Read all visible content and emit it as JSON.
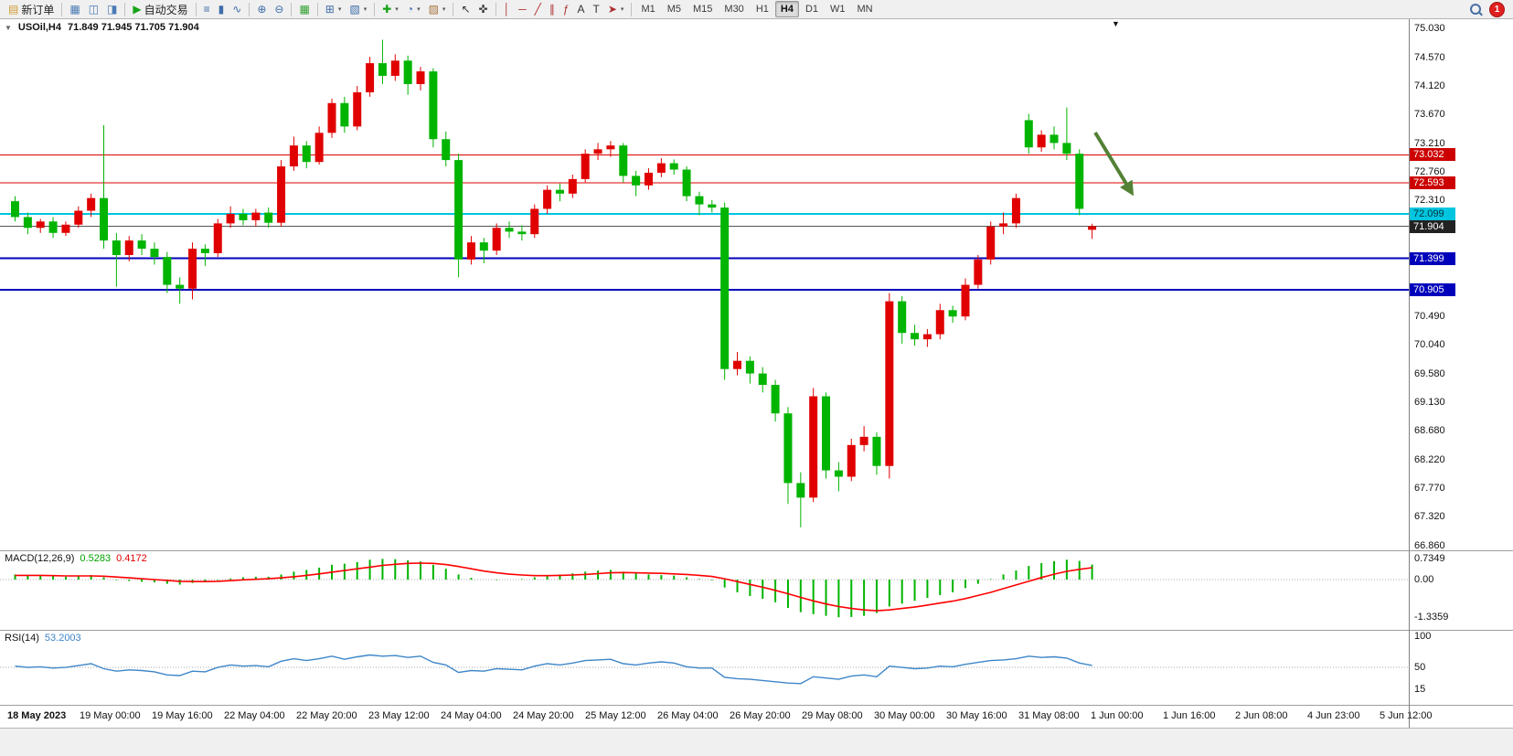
{
  "toolbar": {
    "items": [
      {
        "type": "labelbtn",
        "name": "new-order-button",
        "icon": "new-order-icon",
        "glyph": "▤",
        "color": "#cf9b2f",
        "label": "新订单"
      },
      {
        "type": "sep"
      },
      {
        "type": "icon",
        "name": "charts-window-icon",
        "glyph": "▦",
        "color": "#4a7ab5"
      },
      {
        "type": "icon",
        "name": "data-window-icon",
        "glyph": "◫",
        "color": "#4a7ab5"
      },
      {
        "type": "icon",
        "name": "navigator-icon",
        "glyph": "◨",
        "color": "#4a7ab5"
      },
      {
        "type": "sep"
      },
      {
        "type": "labelbtn",
        "name": "auto-trading-button",
        "icon": "autotrade-play-icon",
        "glyph": "▶",
        "color": "#17a317",
        "label": "自动交易"
      },
      {
        "type": "sep"
      },
      {
        "type": "icon",
        "name": "bar-chart-icon",
        "glyph": "≡",
        "color": "#3d6da8"
      },
      {
        "type": "icon",
        "name": "candlestick-chart-icon",
        "glyph": "▮",
        "color": "#3d6da8"
      },
      {
        "type": "icon",
        "name": "line-chart-icon",
        "glyph": "∿",
        "color": "#3d6da8"
      },
      {
        "type": "sep"
      },
      {
        "type": "icon",
        "name": "zoom-in-icon",
        "glyph": "⊕",
        "color": "#3d6da8"
      },
      {
        "type": "icon",
        "name": "zoom-out-icon",
        "glyph": "⊖",
        "color": "#3d6da8"
      },
      {
        "type": "sep"
      },
      {
        "type": "icon",
        "name": "tile-windows-icon",
        "glyph": "▦",
        "color": "#2f9e2f"
      },
      {
        "type": "sep"
      },
      {
        "type": "icon",
        "name": "new-chart-icon",
        "glyph": "⊞",
        "color": "#3d6da8",
        "dd": true
      },
      {
        "type": "icon",
        "name": "profiles-icon",
        "glyph": "▧",
        "color": "#3d6da8",
        "dd": true
      },
      {
        "type": "sep"
      },
      {
        "type": "icon",
        "name": "indicators-icon",
        "glyph": "✚",
        "color": "#17a317",
        "dd": true
      },
      {
        "type": "icon",
        "name": "periods-icon",
        "glyph": "◔",
        "color": "#3d6da8",
        "dd": true
      },
      {
        "type": "icon",
        "name": "templates-icon",
        "glyph": "▨",
        "color": "#a8743d",
        "dd": true
      },
      {
        "type": "sep"
      },
      {
        "type": "icon",
        "name": "cursor-icon",
        "glyph": "↖",
        "color": "#333333"
      },
      {
        "type": "icon",
        "name": "crosshair-icon",
        "glyph": "✜",
        "color": "#333333"
      },
      {
        "type": "sep"
      },
      {
        "type": "icon",
        "name": "vertical-line-icon",
        "glyph": "│",
        "color": "#b03030"
      },
      {
        "type": "ic",
        "name": ""
      },
      {
        "type": "icon",
        "name": "horizontal-line-icon",
        "glyph": "─",
        "color": "#b03030"
      },
      {
        "type": "icon",
        "name": "trendline-icon",
        "glyph": "╱",
        "color": "#b03030"
      },
      {
        "type": "icon",
        "name": "channel-icon",
        "glyph": "∥",
        "color": "#b03030"
      },
      {
        "type": "icon",
        "name": "fibonacci-icon",
        "glyph": "ƒ",
        "color": "#b03030"
      },
      {
        "type": "icon",
        "name": "text-icon",
        "glyph": "A",
        "color": "#333333"
      },
      {
        "type": "icon",
        "name": "label-icon",
        "glyph": "T",
        "color": "#333333"
      },
      {
        "type": "icon",
        "name": "arrows-icon",
        "glyph": "➤",
        "color": "#b03030",
        "dd": true
      },
      {
        "type": "sep"
      },
      {
        "type": "timeframes"
      },
      {
        "type": "spacer"
      },
      {
        "type": "search"
      },
      {
        "type": "badge"
      }
    ],
    "timeframes": [
      "M1",
      "M5",
      "M15",
      "M30",
      "H1",
      "H4",
      "D1",
      "W1",
      "MN"
    ],
    "active_timeframe": "H4",
    "notification_count": "1"
  },
  "chart": {
    "symbol_period": "USOil,H4",
    "ohlc_text": "71.849 71.945 71.705 71.904",
    "collapse_marker": "▼",
    "shift_marker": "▼",
    "price_axis": [
      "75.030",
      "74.570",
      "74.120",
      "73.670",
      "73.210",
      "72.760",
      "72.310",
      "70.490",
      "70.040",
      "69.580",
      "69.130",
      "68.680",
      "68.220",
      "67.770",
      "67.320",
      "66.860"
    ],
    "price_badges": [
      {
        "text": "73.032",
        "bg": "#cc0000",
        "fg": "#ffffff"
      },
      {
        "text": "72.593",
        "bg": "#cc0000",
        "fg": "#ffffff"
      },
      {
        "text": "72.099",
        "bg": "#00c5e0",
        "fg": "#00323a"
      },
      {
        "text": "71.904",
        "bg": "#222222",
        "fg": "#ffffff"
      },
      {
        "text": "71.399",
        "bg": "#0000bb",
        "fg": "#ffffff"
      },
      {
        "text": "70.905",
        "bg": "#0000bb",
        "fg": "#ffffff"
      }
    ],
    "hlines": [
      {
        "price": 73.032,
        "color": "#dd0000",
        "width": 1
      },
      {
        "price": 72.593,
        "color": "#dd0000",
        "width": 1
      },
      {
        "price": 72.099,
        "color": "#00c5e0",
        "width": 2
      },
      {
        "price": 71.904,
        "color": "#555555",
        "width": 1
      },
      {
        "price": 71.399,
        "color": "#0000bb",
        "width": 2
      },
      {
        "price": 70.905,
        "color": "#0000bb",
        "width": 2
      }
    ],
    "time_axis": [
      "18 May 2023",
      "19 May 00:00",
      "19 May 16:00",
      "22 May 04:00",
      "22 May 20:00",
      "23 May 12:00",
      "24 May 04:00",
      "24 May 20:00",
      "25 May 12:00",
      "26 May 04:00",
      "26 May 20:00",
      "29 May 08:00",
      "30 May 00:00",
      "30 May 16:00",
      "31 May 08:00",
      "1 Jun 00:00",
      "1 Jun 16:00",
      "2 Jun 08:00",
      "4 Jun 23:00",
      "5 Jun 12:00"
    ],
    "arrow_annotation": {
      "color": "#538135"
    }
  },
  "chart_data": {
    "type": "candlestick",
    "symbol": "USOil",
    "period": "H4",
    "ohlc_current": {
      "open": "71.849",
      "high": "71.945",
      "low": "71.705",
      "close": "71.904"
    },
    "colors": {
      "bull": "#e00000",
      "bear": "#00b400",
      "macd_hist": "#00b400",
      "macd_signal": "#ff0000",
      "rsi_line": "#3e86c8"
    },
    "candles": [
      [
        72.3,
        72.38,
        71.98,
        72.05
      ],
      [
        72.05,
        72.12,
        71.78,
        71.88
      ],
      [
        71.88,
        72.02,
        71.8,
        71.98
      ],
      [
        71.98,
        72.05,
        71.72,
        71.8
      ],
      [
        71.8,
        71.98,
        71.75,
        71.93
      ],
      [
        71.93,
        72.22,
        71.88,
        72.15
      ],
      [
        72.15,
        72.42,
        72.05,
        72.35
      ],
      [
        72.35,
        73.5,
        71.55,
        71.68
      ],
      [
        71.68,
        71.8,
        70.95,
        71.45
      ],
      [
        71.45,
        71.75,
        71.35,
        71.68
      ],
      [
        71.68,
        71.78,
        71.45,
        71.55
      ],
      [
        71.55,
        71.65,
        71.3,
        71.42
      ],
      [
        71.42,
        71.5,
        70.85,
        70.98
      ],
      [
        70.98,
        71.1,
        70.68,
        70.92
      ],
      [
        70.92,
        71.65,
        70.75,
        71.55
      ],
      [
        71.55,
        71.62,
        71.28,
        71.48
      ],
      [
        71.48,
        72.02,
        71.42,
        71.95
      ],
      [
        71.95,
        72.22,
        71.88,
        72.1
      ],
      [
        72.1,
        72.18,
        71.92,
        72.0
      ],
      [
        72.0,
        72.18,
        71.9,
        72.12
      ],
      [
        72.12,
        72.2,
        71.88,
        71.96
      ],
      [
        71.96,
        72.95,
        71.9,
        72.85
      ],
      [
        72.85,
        73.32,
        72.78,
        73.18
      ],
      [
        73.18,
        73.25,
        72.82,
        72.92
      ],
      [
        72.92,
        73.48,
        72.88,
        73.38
      ],
      [
        73.38,
        73.92,
        73.3,
        73.85
      ],
      [
        73.85,
        73.95,
        73.38,
        73.48
      ],
      [
        73.48,
        74.12,
        73.42,
        74.02
      ],
      [
        74.02,
        74.58,
        73.95,
        74.48
      ],
      [
        74.48,
        74.85,
        74.15,
        74.28
      ],
      [
        74.28,
        74.62,
        74.2,
        74.52
      ],
      [
        74.52,
        74.6,
        73.98,
        74.15
      ],
      [
        74.15,
        74.42,
        74.05,
        74.35
      ],
      [
        74.35,
        74.4,
        73.15,
        73.28
      ],
      [
        73.28,
        73.4,
        72.85,
        72.95
      ],
      [
        72.95,
        73.05,
        71.1,
        71.38
      ],
      [
        71.38,
        71.75,
        71.3,
        71.65
      ],
      [
        71.65,
        71.72,
        71.32,
        71.52
      ],
      [
        71.52,
        71.95,
        71.45,
        71.88
      ],
      [
        71.88,
        71.98,
        71.72,
        71.82
      ],
      [
        71.82,
        71.92,
        71.68,
        71.78
      ],
      [
        71.78,
        72.25,
        71.72,
        72.18
      ],
      [
        72.18,
        72.55,
        72.1,
        72.48
      ],
      [
        72.48,
        72.58,
        72.3,
        72.42
      ],
      [
        72.42,
        72.72,
        72.35,
        72.65
      ],
      [
        72.65,
        73.12,
        72.6,
        73.05
      ],
      [
        73.05,
        73.22,
        72.95,
        73.12
      ],
      [
        73.12,
        73.25,
        73.0,
        73.18
      ],
      [
        73.18,
        73.22,
        72.6,
        72.7
      ],
      [
        72.7,
        72.78,
        72.38,
        72.55
      ],
      [
        72.55,
        72.82,
        72.48,
        72.75
      ],
      [
        72.75,
        72.98,
        72.68,
        72.9
      ],
      [
        72.9,
        72.96,
        72.72,
        72.8
      ],
      [
        72.8,
        72.85,
        72.3,
        72.38
      ],
      [
        72.38,
        72.45,
        72.08,
        72.25
      ],
      [
        72.25,
        72.32,
        72.12,
        72.2
      ],
      [
        72.2,
        72.28,
        69.48,
        69.65
      ],
      [
        69.65,
        69.92,
        69.55,
        69.78
      ],
      [
        69.78,
        69.85,
        69.42,
        69.58
      ],
      [
        69.58,
        69.68,
        69.28,
        69.4
      ],
      [
        69.4,
        69.48,
        68.82,
        68.95
      ],
      [
        68.95,
        69.05,
        67.52,
        67.85
      ],
      [
        67.85,
        68.02,
        67.15,
        67.62
      ],
      [
        67.62,
        69.35,
        67.55,
        69.22
      ],
      [
        69.22,
        69.28,
        67.92,
        68.05
      ],
      [
        68.05,
        68.18,
        67.72,
        67.95
      ],
      [
        67.95,
        68.55,
        67.88,
        68.45
      ],
      [
        68.45,
        68.75,
        68.35,
        68.58
      ],
      [
        68.58,
        68.65,
        67.98,
        68.12
      ],
      [
        68.12,
        70.85,
        67.92,
        70.72
      ],
      [
        70.72,
        70.8,
        70.05,
        70.22
      ],
      [
        70.22,
        70.35,
        70.02,
        70.12
      ],
      [
        70.12,
        70.28,
        70.0,
        70.2
      ],
      [
        70.2,
        70.68,
        70.12,
        70.58
      ],
      [
        70.58,
        70.65,
        70.38,
        70.48
      ],
      [
        70.48,
        71.08,
        70.42,
        70.98
      ],
      [
        70.98,
        71.45,
        70.92,
        71.38
      ],
      [
        71.38,
        71.98,
        71.3,
        71.9
      ],
      [
        71.9,
        72.12,
        71.78,
        71.95
      ],
      [
        71.95,
        72.42,
        71.88,
        72.35
      ],
      [
        73.58,
        73.68,
        73.05,
        73.15
      ],
      [
        73.15,
        73.42,
        73.08,
        73.35
      ],
      [
        73.35,
        73.48,
        73.12,
        73.22
      ],
      [
        73.22,
        73.78,
        72.95,
        73.05
      ],
      [
        73.05,
        73.12,
        72.08,
        72.18
      ],
      [
        71.849,
        71.945,
        71.705,
        71.904
      ]
    ],
    "macd": {
      "label": "MACD(12,26,9)",
      "main_value": "0.5283",
      "signal_value": "0.4172",
      "axis": [
        "0.7349",
        "0.00",
        "-1.3359"
      ],
      "histogram": [
        0.18,
        0.16,
        0.14,
        0.12,
        0.1,
        0.12,
        0.16,
        0.08,
        -0.02,
        -0.05,
        -0.08,
        -0.1,
        -0.15,
        -0.18,
        -0.12,
        -0.08,
        -0.02,
        0.04,
        0.08,
        0.1,
        0.1,
        0.18,
        0.28,
        0.34,
        0.42,
        0.52,
        0.56,
        0.62,
        0.7,
        0.73,
        0.72,
        0.68,
        0.64,
        0.52,
        0.38,
        0.18,
        0.06,
        0.0,
        -0.02,
        0.0,
        0.02,
        0.08,
        0.15,
        0.18,
        0.22,
        0.28,
        0.32,
        0.34,
        0.28,
        0.22,
        0.18,
        0.16,
        0.14,
        0.08,
        0.02,
        -0.02,
        -0.28,
        -0.45,
        -0.58,
        -0.68,
        -0.8,
        -1.0,
        -1.15,
        -1.22,
        -1.28,
        -1.33,
        -1.32,
        -1.28,
        -1.18,
        -0.95,
        -0.85,
        -0.75,
        -0.65,
        -0.55,
        -0.45,
        -0.3,
        -0.15,
        0.02,
        0.18,
        0.32,
        0.48,
        0.58,
        0.65,
        0.7,
        0.66,
        0.53
      ],
      "signal": [
        0.15,
        0.15,
        0.15,
        0.14,
        0.13,
        0.13,
        0.13,
        0.12,
        0.09,
        0.06,
        0.03,
        0.0,
        -0.03,
        -0.06,
        -0.07,
        -0.07,
        -0.06,
        -0.04,
        -0.01,
        0.01,
        0.03,
        0.06,
        0.1,
        0.15,
        0.2,
        0.26,
        0.32,
        0.38,
        0.44,
        0.5,
        0.54,
        0.57,
        0.58,
        0.57,
        0.53,
        0.46,
        0.38,
        0.3,
        0.24,
        0.19,
        0.16,
        0.14,
        0.14,
        0.15,
        0.16,
        0.18,
        0.21,
        0.24,
        0.25,
        0.24,
        0.23,
        0.22,
        0.2,
        0.18,
        0.15,
        0.11,
        0.03,
        -0.07,
        -0.17,
        -0.27,
        -0.38,
        -0.5,
        -0.63,
        -0.75,
        -0.86,
        -0.95,
        -1.02,
        -1.07,
        -1.1,
        -1.07,
        -1.02,
        -0.97,
        -0.9,
        -0.83,
        -0.76,
        -0.67,
        -0.56,
        -0.45,
        -0.32,
        -0.19,
        -0.06,
        0.07,
        0.19,
        0.29,
        0.36,
        0.42
      ]
    },
    "rsi": {
      "label": "RSI(14)",
      "value": "53.2003",
      "axis": [
        "100",
        "50",
        "15"
      ],
      "levels": [
        50
      ],
      "values": [
        52,
        50,
        51,
        49,
        50,
        53,
        56,
        48,
        44,
        46,
        45,
        43,
        38,
        37,
        44,
        43,
        50,
        54,
        52,
        53,
        51,
        60,
        64,
        61,
        64,
        68,
        63,
        67,
        70,
        68,
        69,
        66,
        68,
        58,
        54,
        42,
        45,
        44,
        48,
        47,
        46,
        52,
        56,
        54,
        57,
        61,
        62,
        63,
        56,
        54,
        57,
        59,
        57,
        51,
        49,
        49,
        34,
        32,
        31,
        29,
        27,
        25,
        24,
        35,
        33,
        31,
        36,
        38,
        35,
        52,
        50,
        48,
        49,
        52,
        51,
        55,
        58,
        61,
        62,
        64,
        68,
        66,
        67,
        65,
        57,
        53.2
      ]
    }
  }
}
